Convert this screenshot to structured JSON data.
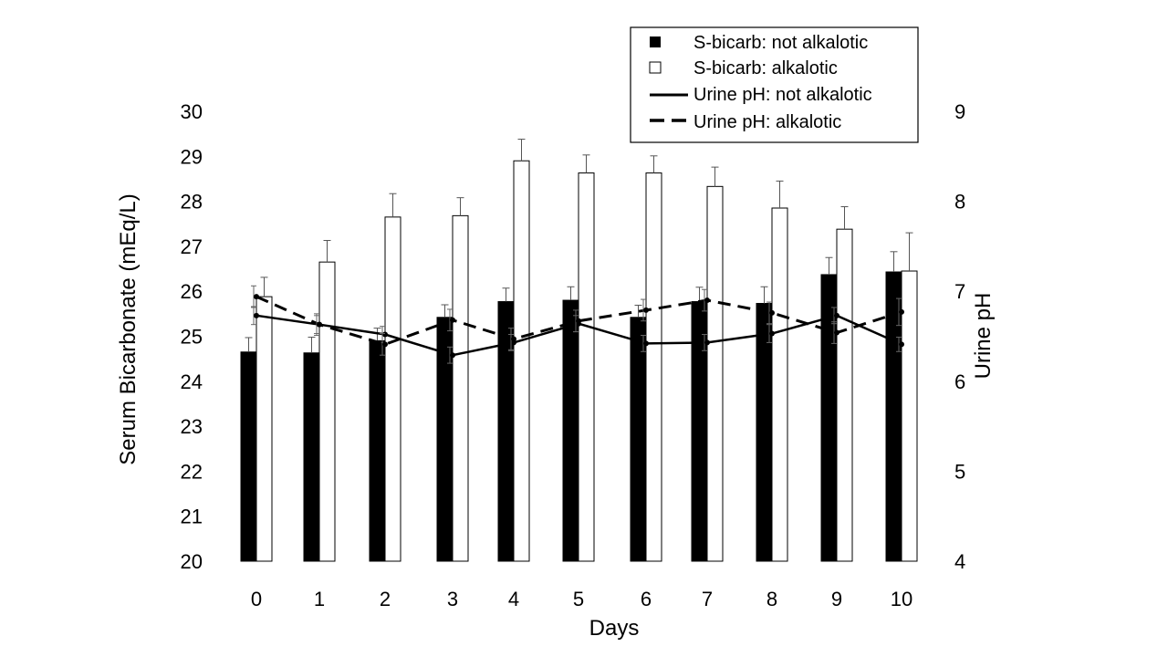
{
  "chart_data": {
    "type": "bar",
    "categories": [
      "0",
      "1",
      "2",
      "3",
      "4",
      "5",
      "6",
      "7",
      "8",
      "9",
      "10"
    ],
    "xlabel": "Days",
    "ylabel": "Serum Bicarbonate (mEq/L)",
    "ylim": [
      20,
      30
    ],
    "y_ticks": [
      "20",
      "21",
      "22",
      "23",
      "24",
      "25",
      "26",
      "27",
      "28",
      "29",
      "30"
    ],
    "y2label": "Urine pH",
    "y2lim": [
      4,
      9
    ],
    "y2_ticks": [
      "4",
      "5",
      "6",
      "7",
      "8",
      "9"
    ],
    "grid": false,
    "legend_position": "top-right",
    "series": [
      {
        "name": "S-bicarb: not alkalotic",
        "kind": "bar",
        "color": "#000000",
        "values": [
          24.65,
          24.63,
          24.9,
          25.42,
          25.77,
          25.8,
          25.42,
          25.77,
          25.73,
          26.37,
          26.43
        ],
        "error": [
          0.32,
          0.35,
          0.28,
          0.28,
          0.3,
          0.3,
          0.27,
          0.32,
          0.37,
          0.38,
          0.45
        ]
      },
      {
        "name": "S-bicarb: alkalotic",
        "kind": "bar",
        "color": "#ffffff",
        "values": [
          25.88,
          26.65,
          27.65,
          27.68,
          28.9,
          28.63,
          28.63,
          28.33,
          27.85,
          27.38,
          26.45
        ],
        "error": [
          0.43,
          0.48,
          0.52,
          0.4,
          0.48,
          0.4,
          0.38,
          0.43,
          0.6,
          0.5,
          0.85
        ]
      },
      {
        "name": "Urine pH: not alkalotic",
        "kind": "line",
        "axis": "y2",
        "style": "solid",
        "values": [
          6.73,
          6.63,
          6.52,
          6.29,
          6.43,
          6.64,
          6.42,
          6.43,
          6.53,
          6.73,
          6.41
        ],
        "error": [
          0.1,
          0.1,
          0.09,
          0.09,
          0.09,
          0.09,
          0.09,
          0.09,
          0.1,
          0.09,
          0.08
        ]
      },
      {
        "name": "Urine pH: alkalotic",
        "kind": "line",
        "axis": "y2",
        "style": "dashed",
        "values": [
          6.94,
          6.63,
          6.41,
          6.68,
          6.47,
          6.67,
          6.79,
          6.9,
          6.76,
          6.54,
          6.77
        ],
        "error": [
          0.12,
          0.12,
          0.12,
          0.12,
          0.12,
          0.12,
          0.12,
          0.12,
          0.12,
          0.12,
          0.15
        ]
      }
    ]
  }
}
